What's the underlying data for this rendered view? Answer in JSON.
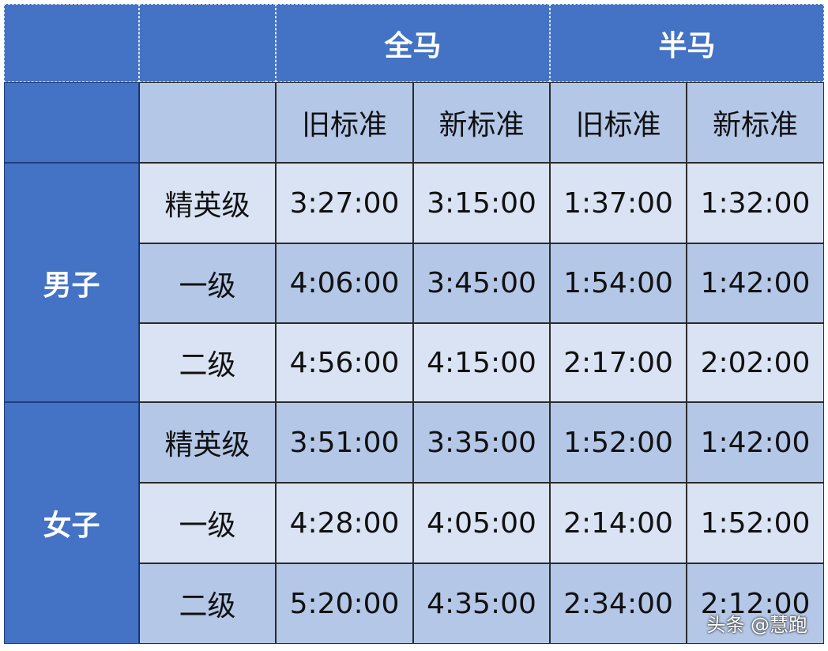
{
  "table": {
    "groups": [
      "全马",
      "半马"
    ],
    "columns": [
      "旧标准",
      "新标准",
      "旧标准",
      "新标准"
    ],
    "sections": [
      {
        "label": "男子",
        "rows": [
          {
            "level": "精英级",
            "times": [
              "3:27:00",
              "3:15:00",
              "1:37:00",
              "1:32:00"
            ]
          },
          {
            "level": "一级",
            "times": [
              "4:06:00",
              "3:45:00",
              "1:54:00",
              "1:42:00"
            ]
          },
          {
            "level": "二级",
            "times": [
              "4:56:00",
              "4:15:00",
              "2:17:00",
              "2:02:00"
            ]
          }
        ]
      },
      {
        "label": "女子",
        "rows": [
          {
            "level": "精英级",
            "times": [
              "3:51:00",
              "3:35:00",
              "1:52:00",
              "1:42:00"
            ]
          },
          {
            "level": "一级",
            "times": [
              "4:28:00",
              "4:05:00",
              "2:14:00",
              "1:52:00"
            ]
          },
          {
            "level": "二级",
            "times": [
              "5:20:00",
              "4:35:00",
              "2:34:00",
              "2:12:00"
            ]
          }
        ]
      }
    ]
  },
  "watermark": "头条 @慧跑"
}
